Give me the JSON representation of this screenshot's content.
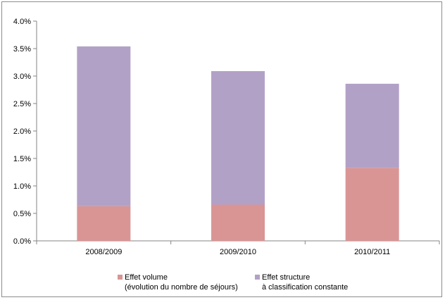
{
  "chart_data": {
    "type": "bar",
    "stacked": true,
    "categories": [
      "2008/2009",
      "2009/2010",
      "2010/2011"
    ],
    "series": [
      {
        "name": "Effet volume\n(évolution du nombre de séjours)",
        "color": "#D99594",
        "values": [
          0.63,
          0.66,
          1.33
        ]
      },
      {
        "name": "Effet structure\nà classification constante",
        "color": "#B2A1C7",
        "values": [
          2.91,
          2.43,
          1.53
        ]
      }
    ],
    "yticks": [
      "0.0%",
      "0.5%",
      "1.0%",
      "1.5%",
      "2.0%",
      "2.5%",
      "3.0%",
      "3.5%",
      "4.0%"
    ],
    "ylim": [
      0,
      4.0
    ],
    "grid": false,
    "legend_position": "bottom"
  }
}
